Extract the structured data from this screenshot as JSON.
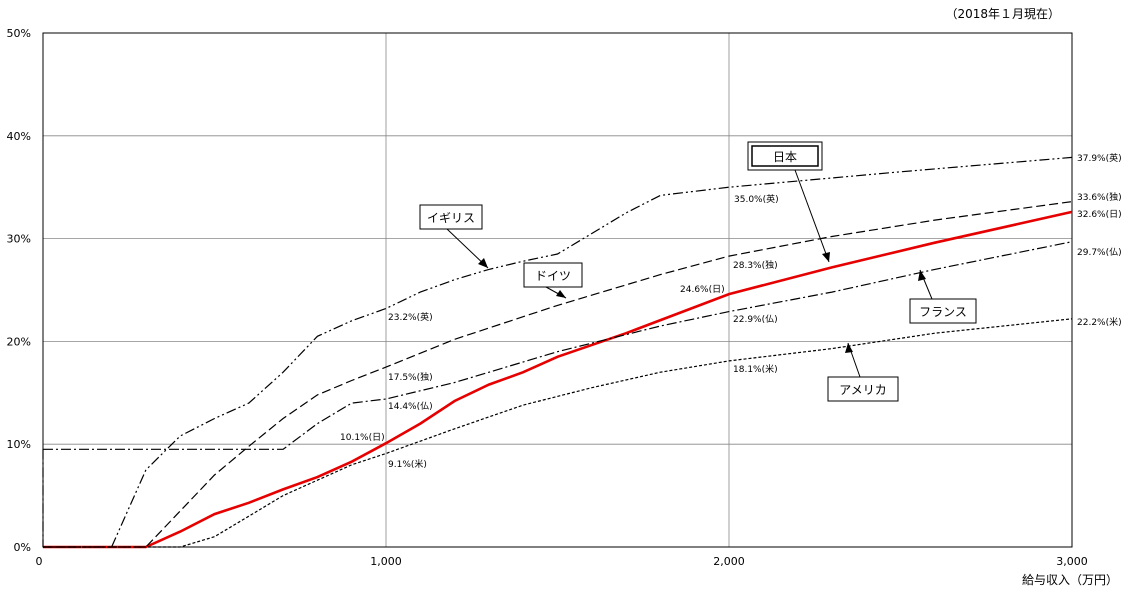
{
  "as_of": "（2018年１月現在）",
  "chart_data": {
    "type": "line",
    "xlabel": "給与収入（万円）",
    "ylabel": "",
    "xlim": [
      0,
      3000
    ],
    "ylim": [
      0,
      50
    ],
    "grid": true,
    "x_ticks": [
      0,
      1000,
      2000,
      3000
    ],
    "x_tick_labels": [
      "0",
      "1,000",
      "2,000",
      "3,000"
    ],
    "y_ticks": [
      0,
      10,
      20,
      30,
      40,
      50
    ],
    "y_tick_labels": [
      "0%",
      "10%",
      "20%",
      "30%",
      "40%",
      "50%"
    ],
    "colors": {
      "日本": "#e60000",
      "others": "#000000"
    },
    "series": [
      {
        "name": "日本",
        "style": "solid",
        "x": [
          0,
          300,
          400,
          500,
          600,
          700,
          800,
          900,
          1000,
          1100,
          1200,
          1300,
          1400,
          1500,
          1700,
          2000,
          2300,
          2600,
          3000
        ],
        "y": [
          0,
          0,
          1.5,
          3.2,
          4.3,
          5.6,
          6.8,
          8.3,
          10.1,
          12,
          14.2,
          15.8,
          17,
          18.5,
          20.8,
          24.6,
          27.2,
          29.6,
          32.6
        ]
      },
      {
        "name": "イギリス",
        "style": "dash-dot-dot",
        "x": [
          0,
          200,
          300,
          400,
          500,
          600,
          700,
          800,
          900,
          1000,
          1100,
          1200,
          1300,
          1400,
          1500,
          1600,
          1700,
          1800,
          2000,
          2500,
          3000
        ],
        "y": [
          0,
          0,
          7.5,
          10.8,
          12.5,
          14,
          17,
          20.5,
          22,
          23.2,
          24.8,
          26,
          27,
          27.8,
          28.5,
          30.5,
          32.5,
          34.2,
          35,
          36.5,
          37.9
        ],
        "note": {
          "x": 1000,
          "y": 23.2,
          "text": "23.2%(英)"
        }
      },
      {
        "name": "ドイツ",
        "style": "dashed",
        "x": [
          0,
          300,
          400,
          500,
          600,
          700,
          800,
          900,
          1000,
          1200,
          1500,
          1800,
          2000,
          2300,
          2600,
          3000
        ],
        "y": [
          0,
          0,
          3.5,
          7,
          9.8,
          12.5,
          14.8,
          16.2,
          17.5,
          20.2,
          23.5,
          26.5,
          28.3,
          30.2,
          31.8,
          33.6
        ],
        "note": {
          "x": 1000,
          "y": 17.5,
          "text": "17.5%(独)"
        }
      },
      {
        "name": "フランス",
        "style": "dash-dot",
        "x": [
          0,
          700,
          800,
          900,
          1000,
          1200,
          1500,
          1800,
          2000,
          2300,
          2600,
          3000
        ],
        "y": [
          9.5,
          9.5,
          12,
          14,
          14.4,
          16,
          19,
          21.5,
          22.9,
          24.8,
          27,
          29.7
        ],
        "note": {
          "x": 1000,
          "y": 14.4,
          "text": "14.4%(仏)"
        }
      },
      {
        "name": "アメリカ",
        "style": "dotted",
        "x": [
          0,
          400,
          500,
          600,
          700,
          800,
          900,
          1000,
          1200,
          1400,
          1600,
          1800,
          2000,
          2300,
          2600,
          3000
        ],
        "y": [
          0,
          0,
          1,
          3,
          5,
          6.5,
          8,
          9.1,
          11.5,
          13.8,
          15.5,
          17,
          18.1,
          19.3,
          20.8,
          22.2
        ],
        "note": {
          "x": 1000,
          "y": 9.1,
          "text": "9.1%(米)"
        }
      }
    ],
    "annotations": {
      "at_1000_jp": "10.1%(日)",
      "at_2000": [
        "35.0%(英)",
        "28.3%(独)",
        "24.6%(日)",
        "22.9%(仏)",
        "18.1%(米)"
      ],
      "at_3000": [
        "37.9%(英)",
        "33.6%(独)",
        "32.6%(日)",
        "29.7%(仏)",
        "22.2%(米)"
      ]
    },
    "legend_boxes": [
      "日本",
      "イギリス",
      "ドイツ",
      "フランス",
      "アメリカ"
    ]
  }
}
